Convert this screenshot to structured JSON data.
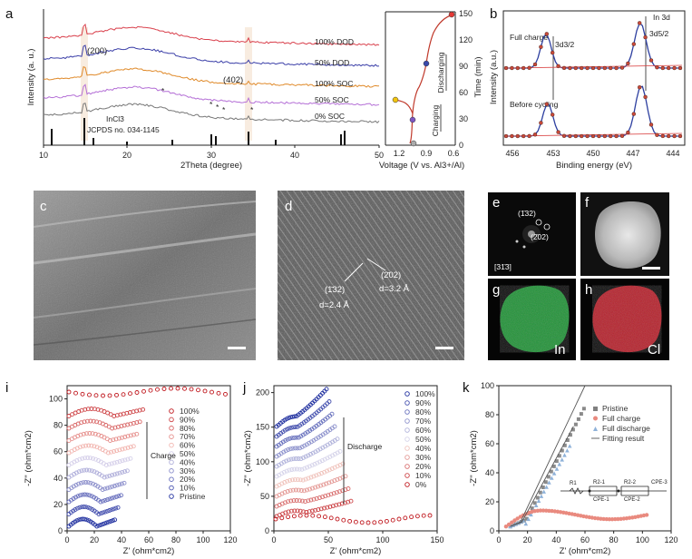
{
  "panels": {
    "a": {
      "label": "a",
      "xlabel": "2Theta (degree)",
      "ylabel": "Intensity (a. u.)",
      "x_ticks": [
        "10",
        "20",
        "30",
        "40",
        "50"
      ],
      "curve_labels": [
        "100% DOD",
        "50% DOD",
        "100% SOC",
        "50% SOC",
        "0% SOC"
      ],
      "peak_labels": [
        "(200)",
        "(402)"
      ],
      "ref_label_1": "InCl3",
      "ref_label_2": "JCPDS no. 034-1145",
      "side_xlabel": "Voltage (V vs. Al3+/Al)",
      "side_x_ticks": [
        "1.2",
        "0.9",
        "0.6"
      ],
      "side_ylabel": "Time (min)",
      "side_y_ticks": [
        "0",
        "30",
        "60",
        "90",
        "120",
        "150"
      ],
      "side_charging": "Charging",
      "side_discharging": "Discharging"
    },
    "b": {
      "label": "b",
      "title": "In 3d",
      "xlabel": "Binding energy (eV)",
      "ylabel": "Intensity (a.u.)",
      "x_ticks": [
        "456",
        "453",
        "450",
        "447",
        "444"
      ],
      "state_top": "Full charge",
      "state_bottom": "Before cycling",
      "peak_1": "3d3/2",
      "peak_2": "3d5/2"
    },
    "c": {
      "label": "c"
    },
    "d": {
      "label": "d",
      "plane_1": "(1̄32)",
      "plane_2": "(2̄02)",
      "d_1": "d=2.4 Å",
      "d_2": "d=3.2 Å"
    },
    "e": {
      "label": "e",
      "spot_1": "(1̄32)",
      "spot_2": "(2̄02)",
      "zone": "[31̄3]"
    },
    "f": {
      "label": "f"
    },
    "g": {
      "label": "g",
      "element": "In"
    },
    "h": {
      "label": "h",
      "element": "Cl"
    },
    "i": {
      "label": "i",
      "xlabel": "Z' (ohm*cm2)",
      "ylabel": "-Z'' (ohm*cm2)",
      "x_ticks": [
        "0",
        "20",
        "40",
        "60",
        "80",
        "100",
        "120"
      ],
      "y_ticks": [
        "0",
        "20",
        "40",
        "60",
        "80",
        "100"
      ],
      "legend": [
        "100%",
        "90%",
        "80%",
        "70%",
        "60%",
        "50%",
        "40%",
        "30%",
        "20%",
        "10%",
        "Pristine"
      ],
      "arrow_label": "Charge"
    },
    "j": {
      "label": "j",
      "xlabel": "Z' (ohm*cm2)",
      "ylabel": "-Z'' (ohm*cm2)",
      "x_ticks": [
        "0",
        "50",
        "100",
        "150"
      ],
      "y_ticks": [
        "0",
        "50",
        "100",
        "150",
        "200"
      ],
      "legend": [
        "100%",
        "90%",
        "80%",
        "70%",
        "60%",
        "50%",
        "40%",
        "30%",
        "20%",
        "10%",
        "0%"
      ],
      "arrow_label": "Discharge"
    },
    "k": {
      "label": "k",
      "xlabel": "Z' (ohm*cm2)",
      "ylabel": "-Z'' (ohm*cm2)",
      "x_ticks": [
        "0",
        "20",
        "40",
        "60",
        "80",
        "100",
        "120"
      ],
      "y_ticks": [
        "0",
        "20",
        "40",
        "60",
        "80",
        "100"
      ],
      "legend": [
        "Pristine",
        "Full charge",
        "Full discharge",
        "Fitting result"
      ],
      "circuit": [
        "R1",
        "R2-1",
        "CPE-1",
        "R2-2",
        "CPE-2",
        "CPE-3"
      ]
    }
  },
  "colors": {
    "in_map": "#1fa83a",
    "cl_map": "#d41f2b",
    "series_red": "#d62728",
    "series_blue": "#1f2f9f"
  }
}
